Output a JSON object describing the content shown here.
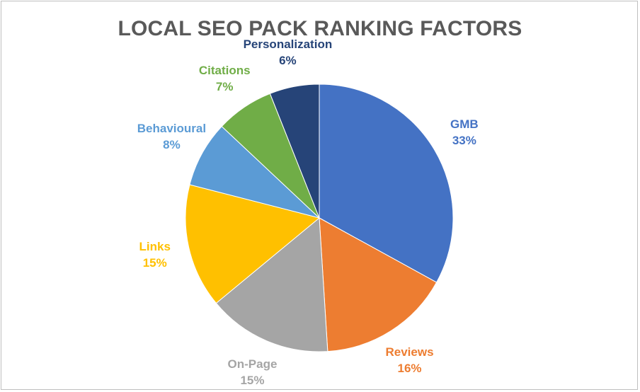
{
  "chart_data": {
    "type": "pie",
    "title": "LOCAL SEO PACK RANKING FACTORS",
    "slices": [
      {
        "name": "GMB",
        "value": 33,
        "value_label": "33%",
        "color": "#4472C4"
      },
      {
        "name": "Reviews",
        "value": 16,
        "value_label": "16%",
        "color": "#ED7D31"
      },
      {
        "name": "On-Page",
        "value": 15,
        "value_label": "15%",
        "color": "#A5A5A5"
      },
      {
        "name": "Links",
        "value": 15,
        "value_label": "15%",
        "color": "#FFC000"
      },
      {
        "name": "Behavioural",
        "value": 8,
        "value_label": "8%",
        "color": "#5B9BD5"
      },
      {
        "name": "Citations",
        "value": 7,
        "value_label": "7%",
        "color": "#70AD47"
      },
      {
        "name": "Personalization",
        "value": 6,
        "value_label": "6%",
        "color": "#264478"
      }
    ],
    "legend": "none",
    "data_labels": "outside"
  }
}
